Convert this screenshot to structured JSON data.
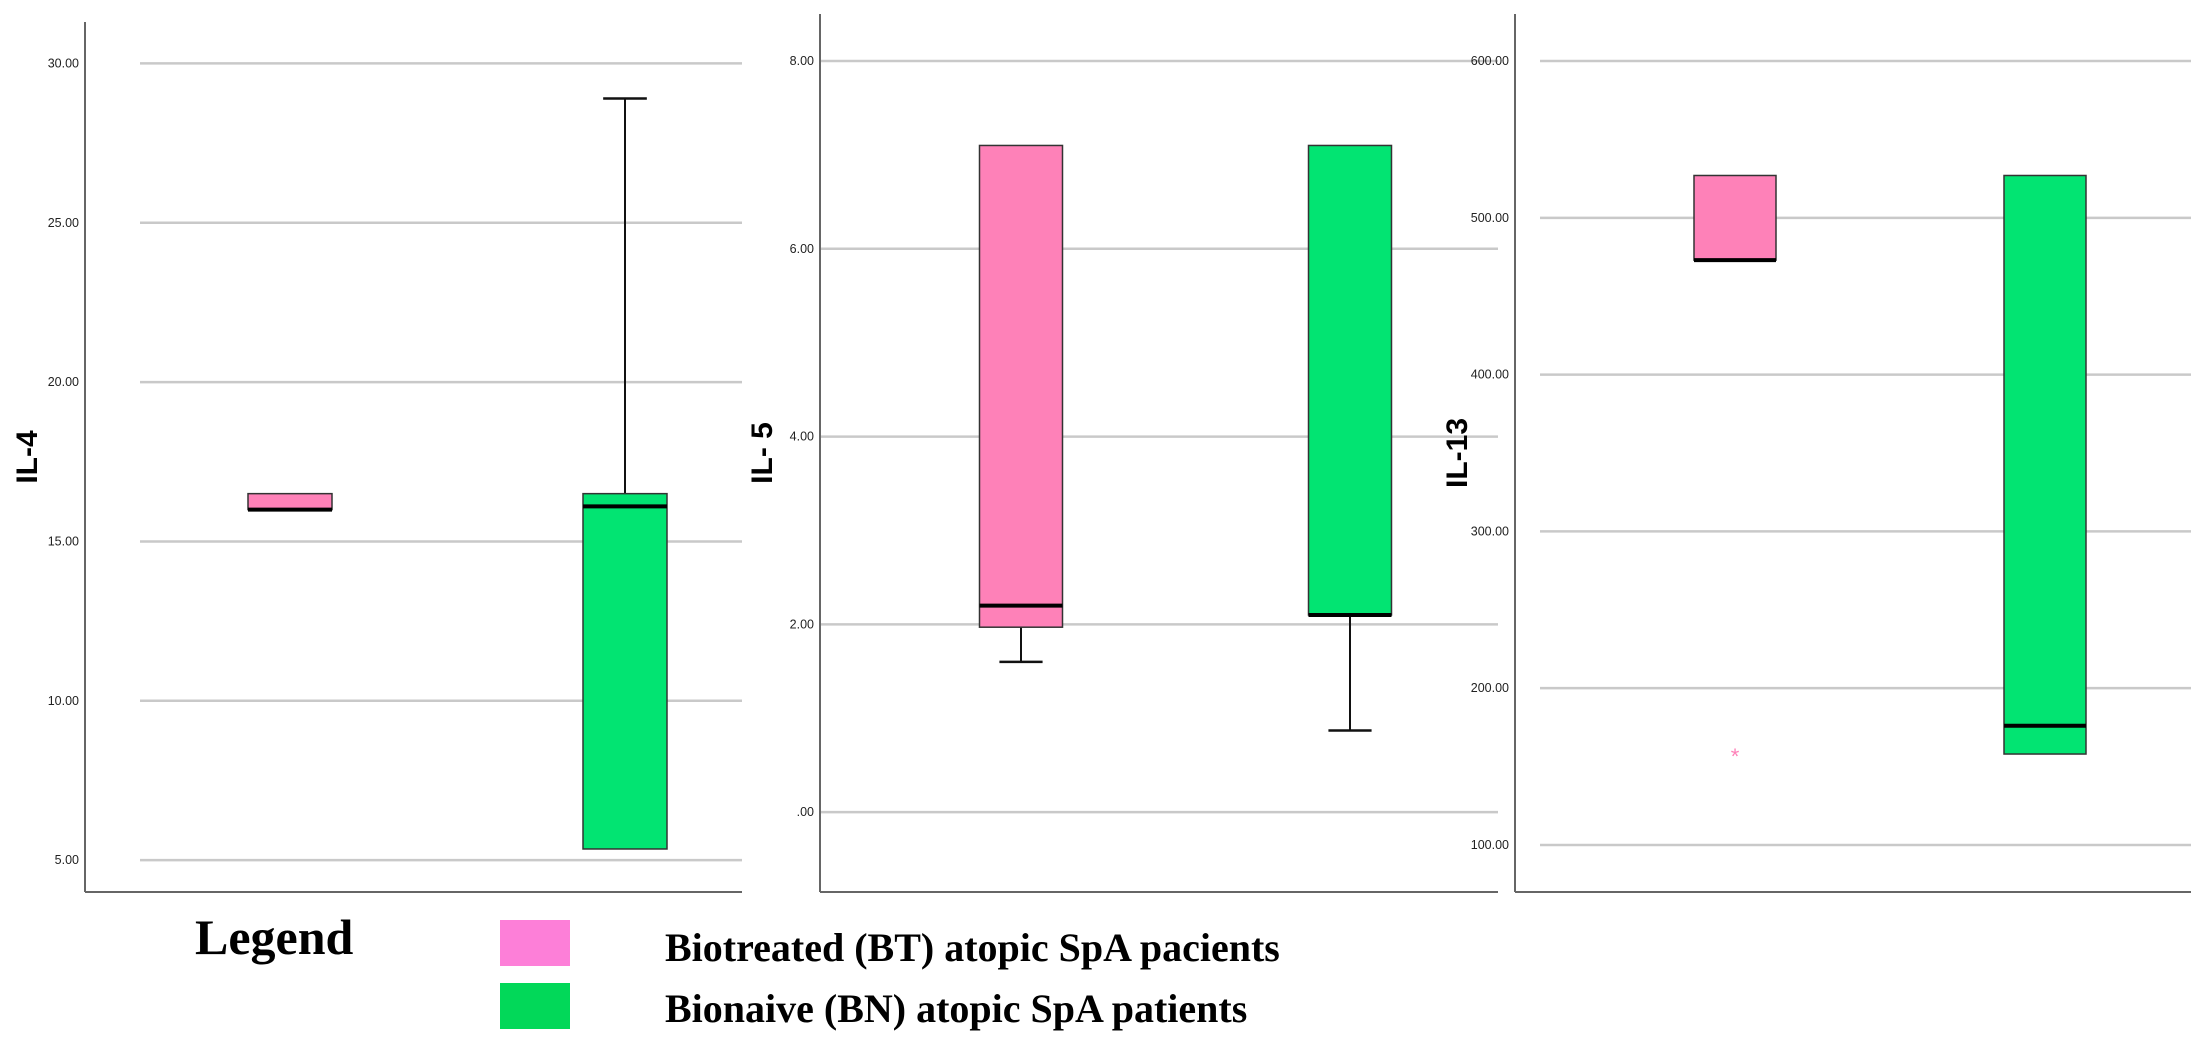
{
  "chart_data": [
    {
      "type": "boxplot",
      "ylabel": "IL-4",
      "ylim": [
        4.0,
        31.3
      ],
      "yticks": [
        5.0,
        10.0,
        15.0,
        20.0,
        25.0,
        30.0
      ],
      "ytick_labels": [
        "5.00",
        "10.00",
        "15.00",
        "20.00",
        "25.00",
        "30.00"
      ],
      "grid": true,
      "groups": [
        {
          "name": "Biotreated (BT) atopic SpA pacients",
          "min": 16.0,
          "q1": 16.0,
          "median": 16.0,
          "q3": 16.5,
          "max": 16.5,
          "outliers": []
        },
        {
          "name": "Bionaive (BN) atopic SpA patients",
          "min": 5.35,
          "q1": 5.35,
          "median": 16.1,
          "q3": 16.5,
          "max": 28.9,
          "outliers": []
        }
      ]
    },
    {
      "type": "boxplot",
      "ylabel": "IL- 5",
      "ylim": [
        -0.85,
        8.5
      ],
      "yticks": [
        0.0,
        2.0,
        4.0,
        6.0,
        8.0
      ],
      "ytick_labels": [
        ".00",
        "2.00",
        "4.00",
        "6.00",
        "8.00"
      ],
      "grid": true,
      "groups": [
        {
          "name": "Biotreated (BT) atopic SpA pacients",
          "min": 1.6,
          "q1": 1.97,
          "median": 2.2,
          "q3": 7.1,
          "max": 7.1,
          "outliers": []
        },
        {
          "name": "Bionaive (BN) atopic SpA patients",
          "min": 0.87,
          "q1": 2.1,
          "median": 2.1,
          "q3": 7.1,
          "max": 7.1,
          "outliers": []
        }
      ]
    },
    {
      "type": "boxplot",
      "ylabel": "IL-13",
      "ylim": [
        70.0,
        630.0
      ],
      "yticks": [
        100.0,
        200.0,
        300.0,
        400.0,
        500.0,
        600.0
      ],
      "ytick_labels": [
        "100.00",
        "200.00",
        "300.00",
        "400.00",
        "500.00",
        "600.00"
      ],
      "grid": true,
      "groups": [
        {
          "name": "Biotreated (BT) atopic SpA pacients",
          "min": 473.0,
          "q1": 473.0,
          "median": 473.0,
          "q3": 527.0,
          "max": 527.0,
          "outliers": [
            {
              "value": 158.0,
              "marker": "*"
            }
          ]
        },
        {
          "name": "Bionaive (BN) atopic SpA patients",
          "min": 158.0,
          "q1": 158.0,
          "median": 176.0,
          "q3": 527.0,
          "max": 527.0,
          "outliers": []
        }
      ]
    }
  ],
  "legend": {
    "title": "Legend",
    "items": [
      {
        "label": "Biotreated (BT) atopic SpA pacients",
        "color": "#fe81b8",
        "swatch_color": "#fd7fd8"
      },
      {
        "label": "Bionaive (BN) atopic SpA patients",
        "color": "#02e472",
        "swatch_color": "#02d859"
      }
    ]
  }
}
